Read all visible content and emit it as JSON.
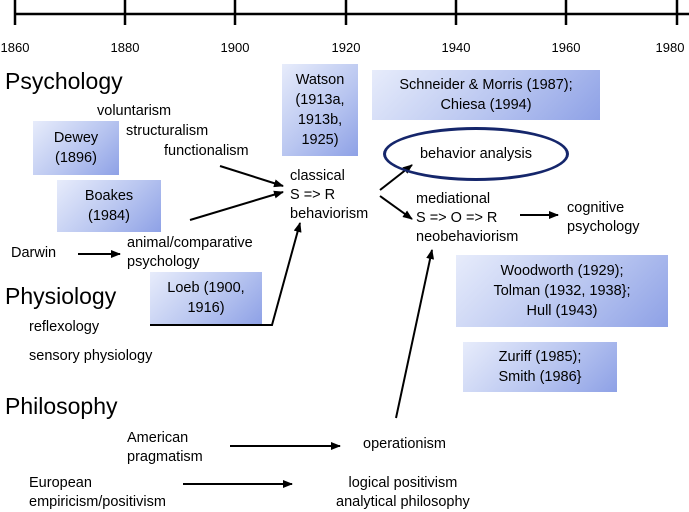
{
  "timeline": {
    "ticks": [
      "1860",
      "1880",
      "1900",
      "1920",
      "1940",
      "1960",
      "1980"
    ]
  },
  "headings": {
    "psychology": "Psychology",
    "physiology": "Physiology",
    "philosophy": "Philosophy"
  },
  "nodes": {
    "voluntarism": "voluntarism",
    "structuralism": "structuralism",
    "functionalism": "functionalism",
    "darwin": "Darwin",
    "animal_comparative": [
      "animal/comparative",
      "psychology"
    ],
    "classical_behaviorism": [
      "classical",
      "S => R",
      "behaviorism"
    ],
    "behavior_analysis": "behavior analysis",
    "mediational_neobehaviorism": [
      "mediational",
      "S => O => R",
      "neobehaviorism"
    ],
    "cognitive_psychology": [
      "cognitive",
      "psychology"
    ],
    "reflexology": "reflexology",
    "sensory_physiology": "sensory physiology",
    "american_pragmatism": [
      "American",
      "pragmatism"
    ],
    "operationism": "operationism",
    "european_empiricism": [
      "European",
      "empiricism/positivism"
    ],
    "logical_positivism": [
      "logical positivism",
      "analytical philosophy"
    ]
  },
  "references": {
    "dewey": [
      "Dewey",
      "(1896)"
    ],
    "boakes": [
      "Boakes",
      "(1984)"
    ],
    "watson": [
      "Watson",
      "(1913a,",
      "1913b,",
      "1925)"
    ],
    "schneider_morris": [
      "Schneider & Morris (1987);",
      "Chiesa (1994)"
    ],
    "loeb": [
      "Loeb (1900,",
      "1916)"
    ],
    "woodworth": [
      "Woodworth (1929);",
      "Tolman (1932, 1938};",
      "Hull (1943)"
    ],
    "zuriff": [
      "Zuriff (1985);",
      "Smith (1986}"
    ]
  },
  "colors": {
    "box_light": "#e7ecfb",
    "box_dark": "#8ea1e6",
    "oval_border": "#15266b",
    "line": "#000000"
  }
}
